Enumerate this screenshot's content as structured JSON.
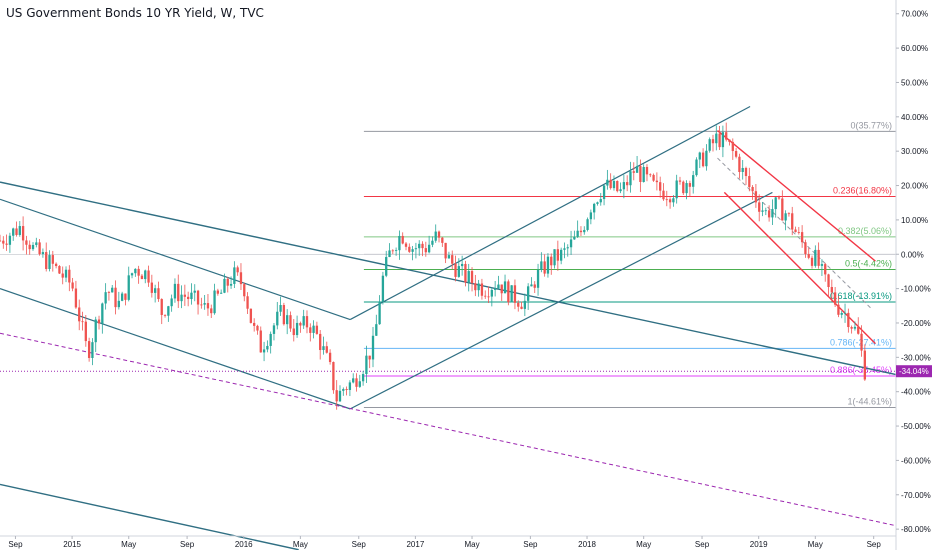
{
  "title": "US Government Bonds 10 YR Yield, W, TVC",
  "chart_data": {
    "type": "candlestick",
    "yunit": "%",
    "ylim": [
      -82,
      74
    ],
    "xlim": [
      "2014-08",
      "2019-10"
    ],
    "y_ticks": [
      "70.00%",
      "60.00%",
      "50.00%",
      "40.00%",
      "30.00%",
      "20.00%",
      "10.00%",
      "0.00%",
      "-10.00%",
      "-20.00%",
      "-30.00%",
      "-40.00%",
      "-50.00%",
      "-60.00%",
      "-70.00%",
      "-80.00%"
    ],
    "y_tick_values": [
      70,
      60,
      50,
      40,
      30,
      20,
      10,
      0,
      -10,
      -20,
      -30,
      -40,
      -50,
      -60,
      -70,
      -80
    ],
    "x_ticks": [
      {
        "label": "Sep",
        "t": 2014.67
      },
      {
        "label": "2015",
        "t": 2015.0
      },
      {
        "label": "May",
        "t": 2015.33
      },
      {
        "label": "Sep",
        "t": 2015.67
      },
      {
        "label": "2016",
        "t": 2016.0
      },
      {
        "label": "May",
        "t": 2016.33
      },
      {
        "label": "Sep",
        "t": 2016.67
      },
      {
        "label": "2017",
        "t": 2017.0
      },
      {
        "label": "May",
        "t": 2017.33
      },
      {
        "label": "Sep",
        "t": 2017.67
      },
      {
        "label": "2018",
        "t": 2018.0
      },
      {
        "label": "May",
        "t": 2018.33
      },
      {
        "label": "Sep",
        "t": 2018.67
      },
      {
        "label": "2019",
        "t": 2019.0
      },
      {
        "label": "May",
        "t": 2019.33
      },
      {
        "label": "Sep",
        "t": 2019.67
      }
    ],
    "price_path": [
      [
        2014.58,
        4
      ],
      [
        2014.7,
        8
      ],
      [
        2014.78,
        1
      ],
      [
        2014.88,
        -3
      ],
      [
        2015.0,
        -9
      ],
      [
        2015.05,
        -20
      ],
      [
        2015.09,
        -29
      ],
      [
        2015.14,
        -20
      ],
      [
        2015.2,
        -10
      ],
      [
        2015.28,
        -15
      ],
      [
        2015.36,
        -4
      ],
      [
        2015.45,
        -6
      ],
      [
        2015.52,
        -17
      ],
      [
        2015.6,
        -11
      ],
      [
        2015.7,
        -13
      ],
      [
        2015.78,
        -16
      ],
      [
        2015.86,
        -12
      ],
      [
        2015.94,
        -6
      ],
      [
        2016.0,
        -9
      ],
      [
        2016.05,
        -21
      ],
      [
        2016.1,
        -27
      ],
      [
        2016.16,
        -22
      ],
      [
        2016.22,
        -17
      ],
      [
        2016.3,
        -22
      ],
      [
        2016.38,
        -20
      ],
      [
        2016.44,
        -25
      ],
      [
        2016.5,
        -33
      ],
      [
        2016.54,
        -42
      ],
      [
        2016.58,
        -39
      ],
      [
        2016.64,
        -37
      ],
      [
        2016.7,
        -32
      ],
      [
        2016.76,
        -26
      ],
      [
        2016.8,
        -9
      ],
      [
        2016.86,
        2
      ],
      [
        2016.92,
        6
      ],
      [
        2016.98,
        2
      ],
      [
        2017.06,
        2
      ],
      [
        2017.12,
        5
      ],
      [
        2017.2,
        -2
      ],
      [
        2017.3,
        -7
      ],
      [
        2017.4,
        -10
      ],
      [
        2017.48,
        -8
      ],
      [
        2017.56,
        -12
      ],
      [
        2017.64,
        -14
      ],
      [
        2017.7,
        -7
      ],
      [
        2017.78,
        -2
      ],
      [
        2017.86,
        0
      ],
      [
        2017.96,
        6
      ],
      [
        2018.02,
        14
      ],
      [
        2018.1,
        20
      ],
      [
        2018.2,
        18
      ],
      [
        2018.28,
        25
      ],
      [
        2018.34,
        22
      ],
      [
        2018.4,
        19
      ],
      [
        2018.48,
        18
      ],
      [
        2018.56,
        20
      ],
      [
        2018.62,
        24
      ],
      [
        2018.7,
        30
      ],
      [
        2018.76,
        34
      ],
      [
        2018.82,
        32
      ],
      [
        2018.88,
        27
      ],
      [
        2018.94,
        20
      ],
      [
        2019.0,
        15
      ],
      [
        2019.04,
        12
      ],
      [
        2019.1,
        14
      ],
      [
        2019.16,
        12
      ],
      [
        2019.22,
        6
      ],
      [
        2019.28,
        1
      ],
      [
        2019.34,
        -2
      ],
      [
        2019.4,
        -10
      ],
      [
        2019.46,
        -15
      ],
      [
        2019.52,
        -18
      ],
      [
        2019.58,
        -24
      ],
      [
        2019.62,
        -34
      ]
    ],
    "fib_levels": [
      {
        "ratio": "0",
        "label": "0(35.77%)",
        "value": 35.77,
        "color": "#9598a1"
      },
      {
        "ratio": "0.236",
        "label": "0.236(16.80%)",
        "value": 16.8,
        "color": "#f23645"
      },
      {
        "ratio": "0.382",
        "label": "0.382(5.06%)",
        "value": 5.06,
        "color": "#81c784"
      },
      {
        "ratio": "0.5",
        "label": "0.5(-4.42%)",
        "value": -4.42,
        "color": "#4caf50"
      },
      {
        "ratio": "0.618",
        "label": "0.618(-13.91%)",
        "value": -13.91,
        "color": "#089981"
      },
      {
        "ratio": "0.786",
        "label": "0.786(-27.41%)",
        "value": -27.41,
        "color": "#64b5f6"
      },
      {
        "ratio": "0.886",
        "label": "0.886(-35.45%)",
        "value": -35.45,
        "color": "#e040fb"
      },
      {
        "ratio": "1",
        "label": "1(-44.61%)",
        "value": -44.61,
        "color": "#9598a1"
      }
    ],
    "fib_x_start": 2016.7,
    "zero_line": 0,
    "current_value": -34.04,
    "current_label": "-34.04%",
    "current_color": "#9c27b0",
    "trend_lines": [
      {
        "name": "long-downtrend-upper",
        "color": "#306f83",
        "width": 1.4,
        "points": [
          [
            2014.58,
            21
          ],
          [
            2019.8,
            -35
          ]
        ]
      },
      {
        "name": "wedge-upper",
        "color": "#306f83",
        "width": 1.2,
        "points": [
          [
            2014.58,
            16
          ],
          [
            2016.62,
            -19
          ]
        ]
      },
      {
        "name": "wedge-lower",
        "color": "#306f83",
        "width": 1.2,
        "points": [
          [
            2014.58,
            -10
          ],
          [
            2016.62,
            -45
          ]
        ]
      },
      {
        "name": "bottom-downtrend",
        "color": "#306f83",
        "width": 1.4,
        "points": [
          [
            2014.58,
            -67
          ],
          [
            2016.32,
            -86
          ]
        ]
      },
      {
        "name": "rising-channel-upper",
        "color": "#306f83",
        "width": 1.2,
        "points": [
          [
            2016.62,
            -19
          ],
          [
            2018.95,
            43
          ]
        ]
      },
      {
        "name": "rising-channel-lower",
        "color": "#306f83",
        "width": 1.2,
        "points": [
          [
            2016.62,
            -45
          ],
          [
            2019.08,
            18
          ]
        ]
      },
      {
        "name": "falling-channel-upper",
        "color": "#f23645",
        "width": 1.4,
        "points": [
          [
            2018.76,
            36
          ],
          [
            2019.68,
            -2
          ]
        ]
      },
      {
        "name": "falling-channel-lower",
        "color": "#f23645",
        "width": 1.4,
        "points": [
          [
            2018.8,
            18
          ],
          [
            2019.68,
            -26
          ]
        ]
      },
      {
        "name": "falling-mid",
        "color": "#9598a1",
        "width": 1,
        "dash": "4,3",
        "points": [
          [
            2018.76,
            28
          ],
          [
            2019.66,
            -16
          ]
        ]
      },
      {
        "name": "support-dashed",
        "color": "#9c27b0",
        "width": 1,
        "dash": "4,3",
        "points": [
          [
            2014.58,
            -23
          ],
          [
            2019.8,
            -79
          ]
        ]
      },
      {
        "name": "horizontal-dotted",
        "color": "#9c27b0",
        "width": 1,
        "dash": "1,2",
        "points": [
          [
            2014.58,
            -34.04
          ],
          [
            2019.8,
            -34.04
          ]
        ]
      }
    ]
  }
}
